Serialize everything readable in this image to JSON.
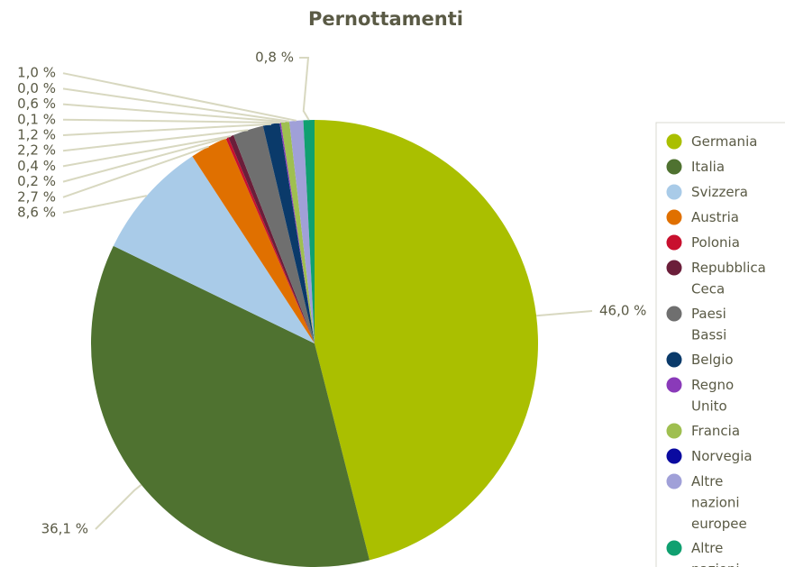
{
  "chart_data": {
    "type": "pie",
    "title": "Pernottamenti",
    "categories": [
      "Germania",
      "Italia",
      "Svizzera",
      "Austria",
      "Polonia",
      "Repubblica Ceca",
      "Paesi Bassi",
      "Belgio",
      "Regno Unito",
      "Francia",
      "Norvegia",
      "Altre nazioni europee",
      "Altre nazioni"
    ],
    "values": [
      46.0,
      36.1,
      8.6,
      2.7,
      0.2,
      0.4,
      2.2,
      1.2,
      0.1,
      0.6,
      0.0,
      1.0,
      0.8
    ],
    "value_labels": [
      "46,0 %",
      "36,1 %",
      "8,6 %",
      "2,7 %",
      "0,2 %",
      "0,4 %",
      "2,2 %",
      "1,2 %",
      "0,1 %",
      "0,6 %",
      "0,0 %",
      "1,0 %",
      "0,8 %"
    ],
    "colors": [
      "#aabf00",
      "#4f7230",
      "#a9cbe8",
      "#e07000",
      "#c8102e",
      "#6b1e3a",
      "#6f6f6f",
      "#0a3a6a",
      "#8a3ab9",
      "#9fbf50",
      "#0a0aa0",
      "#a0a0d8",
      "#10a070"
    ],
    "legend": "right"
  }
}
